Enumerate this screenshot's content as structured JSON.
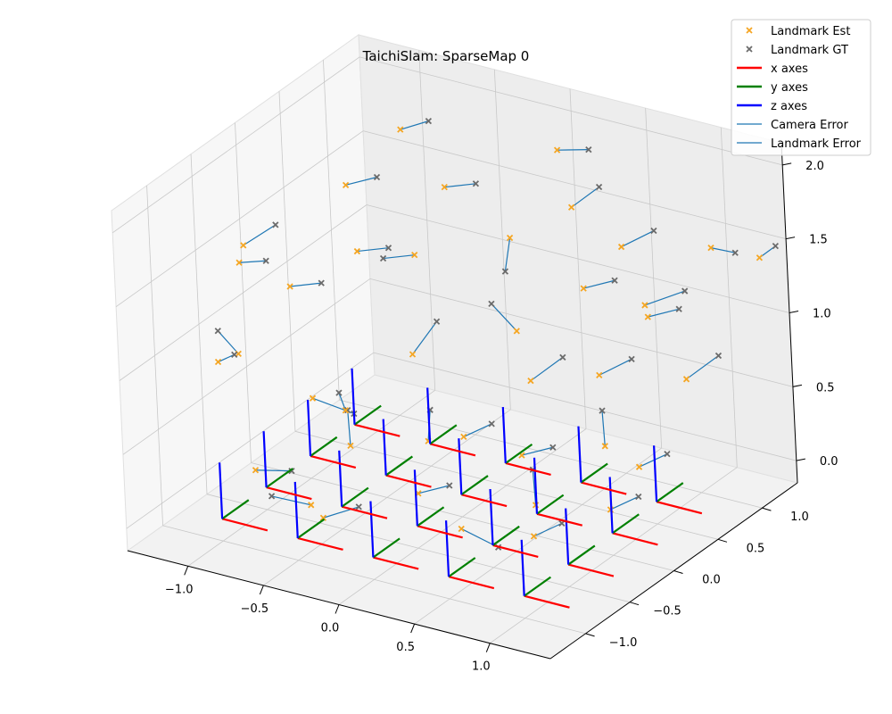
{
  "chart_data": {
    "type": "scatter3d",
    "title": "TaichiSlam: SparseMap 0",
    "xlabel": "",
    "ylabel": "",
    "zlabel": "",
    "xlim": [
      -1.4,
      1.4
    ],
    "ylim": [
      -1.4,
      1.4
    ],
    "zlim": [
      -0.15,
      2.15
    ],
    "x_ticks": [
      -1.0,
      -0.5,
      0.0,
      0.5,
      1.0
    ],
    "y_ticks": [
      -1.0,
      -0.5,
      0.0,
      0.5,
      1.0
    ],
    "z_ticks": [
      0.0,
      0.5,
      1.0,
      1.5,
      2.0
    ],
    "x_tick_labels": [
      "−1.0",
      "−0.5",
      "0.0",
      "0.5",
      "1.0"
    ],
    "y_tick_labels": [
      "−1.0",
      "−0.5",
      "0.0",
      "0.5",
      "1.0"
    ],
    "z_tick_labels": [
      "0.0",
      "0.5",
      "1.0",
      "1.5",
      "2.0"
    ],
    "grid": true,
    "legend_position": "top-right",
    "legend": [
      {
        "label": "Landmark Est",
        "kind": "marker",
        "color": "#f5a623"
      },
      {
        "label": "Landmark GT",
        "kind": "marker",
        "color": "#6b6b6b"
      },
      {
        "label": "x axes",
        "kind": "line",
        "color": "#ff0000"
      },
      {
        "label": "y axes",
        "kind": "line",
        "color": "#008000"
      },
      {
        "label": "z axes",
        "kind": "line",
        "color": "#0000ff"
      },
      {
        "label": "Camera Error",
        "kind": "line",
        "color": "#1f77b4"
      },
      {
        "label": "Landmark Error",
        "kind": "line",
        "color": "#1f77b4"
      }
    ],
    "colors": {
      "landmark_est": "#f5a623",
      "landmark_gt": "#6b6b6b",
      "x_axis": "#ff0000",
      "y_axis": "#008000",
      "z_axis": "#0000ff",
      "error": "#1f77b4"
    },
    "cameras": [
      [
        -1.0,
        -1.0,
        0.0
      ],
      [
        -0.5,
        -1.0,
        0.0
      ],
      [
        0.0,
        -1.0,
        0.0
      ],
      [
        0.5,
        -1.0,
        0.0
      ],
      [
        1.0,
        -1.0,
        0.0
      ],
      [
        -1.0,
        -0.5,
        0.0
      ],
      [
        -0.5,
        -0.5,
        0.0
      ],
      [
        0.0,
        -0.5,
        0.0
      ],
      [
        0.5,
        -0.5,
        0.0
      ],
      [
        1.0,
        -0.5,
        0.0
      ],
      [
        -1.0,
        0.0,
        0.0
      ],
      [
        -0.5,
        0.0,
        0.0
      ],
      [
        0.0,
        0.0,
        0.0
      ],
      [
        0.5,
        0.0,
        0.0
      ],
      [
        1.0,
        0.0,
        0.0
      ],
      [
        -1.0,
        0.5,
        0.0
      ],
      [
        -0.5,
        0.5,
        0.0
      ],
      [
        0.0,
        0.5,
        0.0
      ],
      [
        0.5,
        0.5,
        0.0
      ],
      [
        1.0,
        0.5,
        0.0
      ]
    ],
    "landmarks": [
      {
        "est": [
          -1.05,
          -0.6,
          1.55
        ],
        "gt": [
          -0.9,
          -0.55,
          1.58
        ]
      },
      {
        "est": [
          -0.9,
          -0.9,
          1.1
        ],
        "gt": [
          -1.0,
          -0.95,
          1.25
        ]
      },
      {
        "est": [
          -1.1,
          -0.8,
          0.95
        ],
        "gt": [
          -1.05,
          -0.7,
          0.97
        ]
      },
      {
        "est": [
          -0.7,
          -1.1,
          0.45
        ],
        "gt": [
          -0.55,
          -0.95,
          0.42
        ]
      },
      {
        "est": [
          -0.4,
          -1.0,
          0.25
        ],
        "gt": [
          -0.6,
          -1.1,
          0.3
        ]
      },
      {
        "est": [
          -0.9,
          -0.3,
          1.3
        ],
        "gt": [
          -0.75,
          -0.2,
          1.32
        ]
      },
      {
        "est": [
          -0.6,
          -0.6,
          0.75
        ],
        "gt": [
          -0.45,
          -0.4,
          0.6
        ]
      },
      {
        "est": [
          -0.3,
          -0.7,
          0.55
        ],
        "gt": [
          -0.4,
          -0.55,
          0.7
        ]
      },
      {
        "est": [
          -0.2,
          -0.9,
          0.9
        ],
        "gt": [
          -0.3,
          -0.8,
          0.95
        ]
      },
      {
        "est": [
          -0.5,
          -0.2,
          1.6
        ],
        "gt": [
          -0.35,
          -0.1,
          1.62
        ]
      },
      {
        "est": [
          -0.3,
          0.1,
          1.5
        ],
        "gt": [
          -0.45,
          0.0,
          1.48
        ]
      },
      {
        "est": [
          -0.1,
          -0.3,
          1.05
        ],
        "gt": [
          -0.05,
          -0.1,
          1.2
        ]
      },
      {
        "est": [
          0.1,
          -0.5,
          0.6
        ],
        "gt": [
          0.0,
          -0.3,
          0.7
        ]
      },
      {
        "est": [
          0.2,
          -0.8,
          0.4
        ],
        "gt": [
          0.35,
          -0.7,
          0.45
        ]
      },
      {
        "est": [
          0.4,
          -0.6,
          0.75
        ],
        "gt": [
          0.5,
          -0.45,
          0.8
        ]
      },
      {
        "est": [
          -0.2,
          0.3,
          1.9
        ],
        "gt": [
          -0.05,
          0.4,
          1.92
        ]
      },
      {
        "est": [
          0.1,
          0.5,
          1.55
        ],
        "gt": [
          0.15,
          0.35,
          1.4
        ]
      },
      {
        "est": [
          0.3,
          0.2,
          1.1
        ],
        "gt": [
          0.2,
          0.1,
          1.3
        ]
      },
      {
        "est": [
          0.5,
          0.0,
          0.9
        ],
        "gt": [
          0.6,
          0.2,
          1.0
        ]
      },
      {
        "est": [
          0.6,
          -0.3,
          0.55
        ],
        "gt": [
          0.75,
          -0.2,
          0.6
        ]
      },
      {
        "est": [
          0.8,
          -0.5,
          0.35
        ],
        "gt": [
          0.7,
          -0.35,
          0.5
        ]
      },
      {
        "est": [
          0.9,
          -0.7,
          0.25
        ],
        "gt": [
          1.0,
          -0.55,
          0.3
        ]
      },
      {
        "est": [
          0.7,
          0.3,
          1.45
        ],
        "gt": [
          0.85,
          0.4,
          1.5
        ]
      },
      {
        "est": [
          0.9,
          0.1,
          1.0
        ],
        "gt": [
          1.0,
          0.3,
          1.05
        ]
      },
      {
        "est": [
          1.1,
          -0.2,
          0.7
        ],
        "gt": [
          1.0,
          -0.05,
          0.85
        ]
      },
      {
        "est": [
          1.2,
          0.0,
          0.5
        ],
        "gt": [
          1.3,
          0.15,
          0.55
        ]
      },
      {
        "est": [
          0.4,
          0.7,
          1.75
        ],
        "gt": [
          0.5,
          0.85,
          1.85
        ]
      },
      {
        "est": [
          0.2,
          0.9,
          2.0
        ],
        "gt": [
          0.35,
          1.0,
          2.0
        ]
      },
      {
        "est": [
          1.0,
          0.5,
          1.25
        ],
        "gt": [
          1.15,
          0.6,
          1.3
        ]
      },
      {
        "est": [
          1.3,
          0.4,
          0.95
        ],
        "gt": [
          1.4,
          0.6,
          1.05
        ]
      },
      {
        "est": [
          1.2,
          0.9,
          1.6
        ],
        "gt": [
          1.3,
          1.0,
          1.55
        ]
      },
      {
        "est": [
          1.4,
          1.1,
          1.5
        ],
        "gt": [
          1.45,
          1.2,
          1.55
        ]
      },
      {
        "est": [
          0.8,
          0.8,
          1.15
        ],
        "gt": [
          0.95,
          1.0,
          1.2
        ]
      },
      {
        "est": [
          -0.8,
          0.2,
          1.8
        ],
        "gt": [
          -0.65,
          0.3,
          1.85
        ]
      },
      {
        "est": [
          -1.2,
          -0.3,
          1.5
        ],
        "gt": [
          -1.1,
          -0.1,
          1.58
        ]
      },
      {
        "est": [
          -0.6,
          0.5,
          2.1
        ],
        "gt": [
          -0.5,
          0.65,
          2.12
        ]
      },
      {
        "est": [
          0.6,
          0.9,
          1.45
        ],
        "gt": [
          0.7,
          1.1,
          1.5
        ]
      },
      {
        "est": [
          -0.2,
          -1.2,
          0.3
        ],
        "gt": [
          -0.05,
          -1.05,
          0.35
        ]
      },
      {
        "est": [
          0.6,
          -1.0,
          0.35
        ],
        "gt": [
          0.75,
          -0.85,
          0.2
        ]
      },
      {
        "est": [
          1.3,
          -0.5,
          0.45
        ],
        "gt": [
          1.4,
          -0.35,
          0.5
        ]
      }
    ]
  }
}
